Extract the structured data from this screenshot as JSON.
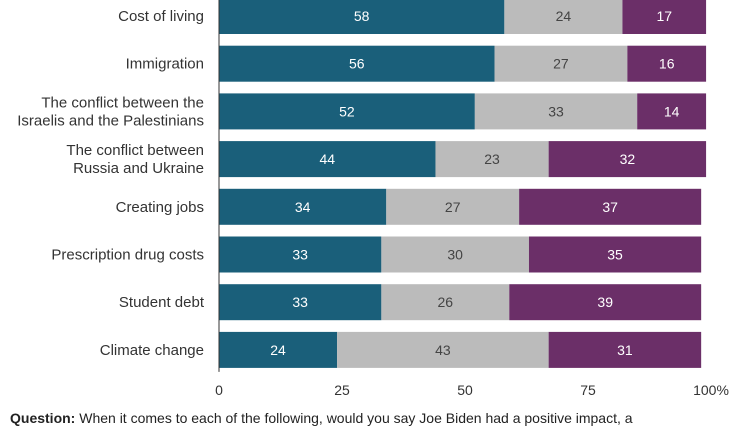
{
  "chart_data": {
    "type": "bar",
    "orientation": "horizontal",
    "stacked": true,
    "categories": [
      "Cost of living",
      "Immigration",
      "The conflict between the Israelis and the Palestinians",
      "The conflict between Russia and Ukraine",
      "Creating jobs",
      "Prescription drug costs",
      "Student debt",
      "Climate change"
    ],
    "category_lines": [
      [
        "Cost of living"
      ],
      [
        "Immigration"
      ],
      [
        "The conflict between the",
        "Israelis and the Palestinians"
      ],
      [
        "The conflict between",
        "Russia and Ukraine"
      ],
      [
        "Creating jobs"
      ],
      [
        "Prescription drug costs"
      ],
      [
        "Student debt"
      ],
      [
        "Climate change"
      ]
    ],
    "series": [
      {
        "values": [
          58,
          56,
          52,
          44,
          34,
          33,
          33,
          24
        ],
        "color": "#1a5f7a",
        "text_color": "#ffffff"
      },
      {
        "values": [
          24,
          27,
          33,
          23,
          27,
          30,
          26,
          43
        ],
        "color": "#bbbbbb",
        "text_color": "#444444"
      },
      {
        "values": [
          17,
          16,
          14,
          32,
          37,
          35,
          39,
          31
        ],
        "color": "#6b2f68",
        "text_color": "#ffffff"
      }
    ],
    "xlim": [
      0,
      100
    ],
    "xticks": [
      "0",
      "25",
      "50",
      "75",
      "100%"
    ],
    "xtick_values": [
      0,
      25,
      50,
      75,
      100
    ],
    "grid": false
  },
  "footer": {
    "question_label": "Question:",
    "question_text": "When it comes to each of the following, would you say Joe Biden had a positive impact, a"
  }
}
